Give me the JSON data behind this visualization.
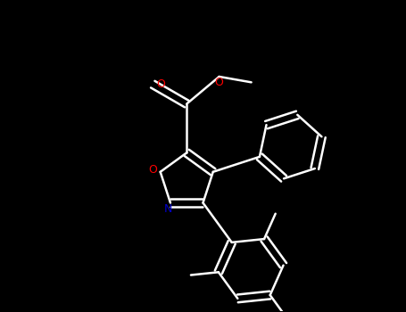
{
  "background_color": "#000000",
  "bond_color": "#ffffff",
  "nitrogen_color": "#0000cd",
  "oxygen_color": "#ff0000",
  "line_width": 1.8,
  "figsize": [
    4.55,
    3.5
  ],
  "dpi": 100,
  "xlim": [
    -4.5,
    5.5
  ],
  "ylim": [
    -4.0,
    5.5
  ]
}
